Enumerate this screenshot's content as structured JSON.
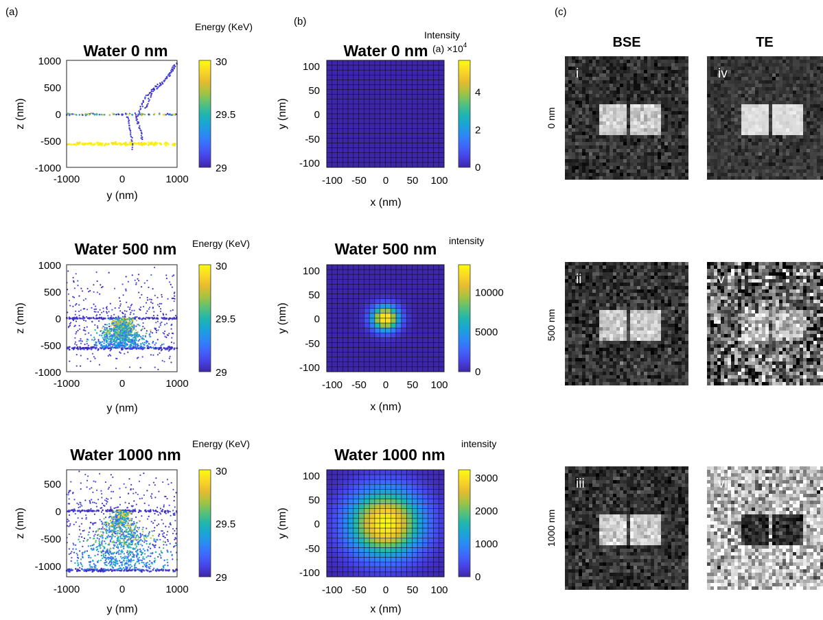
{
  "panel_labels": {
    "a": "(a)",
    "b": "(b)",
    "c": "(c)"
  },
  "chart_data": [
    {
      "type": "scatter",
      "title": "Water 0 nm",
      "xlabel": "y (nm)",
      "ylabel": "z (nm)",
      "xlim": [
        -1000,
        1000
      ],
      "ylim": [
        -1000,
        1000
      ],
      "xticks": [
        "-1000",
        "0",
        "1000"
      ],
      "yticks": [
        "1000",
        "500",
        "0",
        "-500",
        "-1000"
      ],
      "colorbar": {
        "title": "Energy (KeV)",
        "min": 29,
        "max": 30,
        "ticks": [
          "30",
          "29.5",
          "29"
        ]
      },
      "water_thickness_nm": 0
    },
    {
      "type": "scatter",
      "title": "Water 500 nm",
      "xlabel": "y (nm)",
      "ylabel": "z (nm)",
      "xlim": [
        -1000,
        1000
      ],
      "ylim": [
        -1000,
        1000
      ],
      "xticks": [
        "-1000",
        "0",
        "1000"
      ],
      "yticks": [
        "1000",
        "500",
        "0",
        "-500",
        "-1000"
      ],
      "colorbar": {
        "title": "Energy (KeV)",
        "min": 29,
        "max": 30,
        "ticks": [
          "30",
          "29.5",
          "29"
        ]
      },
      "water_thickness_nm": 500
    },
    {
      "type": "scatter",
      "title": "Water 1000 nm",
      "xlabel": "y (nm)",
      "ylabel": "z (nm)",
      "xlim": [
        -1000,
        1000
      ],
      "ylim": [
        -1200,
        750
      ],
      "xticks": [
        "-1000",
        "0",
        "1000"
      ],
      "yticks": [
        "500",
        "0",
        "-500",
        "-1000"
      ],
      "colorbar": {
        "title": "Energy (KeV)",
        "min": 29,
        "max": 30,
        "ticks": [
          "30",
          "29.5",
          "29"
        ]
      },
      "water_thickness_nm": 1000
    },
    {
      "type": "heatmap",
      "title": "Water 0 nm",
      "xlabel": "x (nm)",
      "ylabel": "y (nm)",
      "xlim": [
        -110,
        110
      ],
      "ylim": [
        -110,
        110
      ],
      "xticks": [
        "-100",
        "-50",
        "0",
        "50",
        "100"
      ],
      "yticks": [
        "100",
        "50",
        "0",
        "-50",
        "-100"
      ],
      "peak": 57000,
      "spread_nm": 2,
      "colorbar": {
        "title": "Intensity",
        "subtitle": "(a) ×10",
        "exponent": "4",
        "min": 0,
        "max": 57000,
        "ticks": [
          "4",
          "2",
          "0"
        ],
        "tick_values": [
          40000,
          20000,
          0
        ]
      }
    },
    {
      "type": "heatmap",
      "title": "Water 500 nm",
      "xlabel": "x (nm)",
      "ylabel": "y (nm)",
      "xlim": [
        -110,
        110
      ],
      "ylim": [
        -110,
        110
      ],
      "xticks": [
        "-100",
        "-50",
        "0",
        "50",
        "100"
      ],
      "yticks": [
        "100",
        "50",
        "0",
        "-50",
        "-100"
      ],
      "peak": 13500,
      "spread_nm": 18,
      "colorbar": {
        "title": "intensity",
        "min": 0,
        "max": 13500,
        "ticks": [
          "10000",
          "5000",
          "0"
        ],
        "tick_values": [
          10000,
          5000,
          0
        ]
      }
    },
    {
      "type": "heatmap",
      "title": "Water 1000 nm",
      "xlabel": "x (nm)",
      "ylabel": "y (nm)",
      "xlim": [
        -110,
        110
      ],
      "ylim": [
        -110,
        110
      ],
      "xticks": [
        "-100",
        "-50",
        "0",
        "50",
        "100"
      ],
      "yticks": [
        "100",
        "50",
        "0",
        "-50",
        "-100"
      ],
      "peak": 3250,
      "spread_nm": 48,
      "colorbar": {
        "title": "intensity",
        "min": 0,
        "max": 3250,
        "ticks": [
          "3000",
          "2000",
          "1000",
          "0"
        ],
        "tick_values": [
          3000,
          2000,
          1000,
          0
        ]
      }
    }
  ],
  "micrographs": {
    "columns": [
      "BSE",
      "TE"
    ],
    "rows": [
      "0 nm",
      "500 nm",
      "1000 nm"
    ],
    "tiles": [
      {
        "label": "i",
        "column": "BSE",
        "row": "0 nm"
      },
      {
        "label": "iv",
        "column": "TE",
        "row": "0 nm"
      },
      {
        "label": "ii",
        "column": "BSE",
        "row": "500 nm"
      },
      {
        "label": "v",
        "column": "TE",
        "row": "500 nm"
      },
      {
        "label": "iii",
        "column": "BSE",
        "row": "1000 nm"
      },
      {
        "label": "vi",
        "column": "TE",
        "row": "1000 nm"
      }
    ]
  },
  "colormap": [
    "#3e26a8",
    "#4743e7",
    "#3f66fc",
    "#2c88f5",
    "#1aa4d8",
    "#1fb7ae",
    "#5bc177",
    "#a6c340",
    "#e6bb30",
    "#fbd825",
    "#f9fb0e"
  ]
}
